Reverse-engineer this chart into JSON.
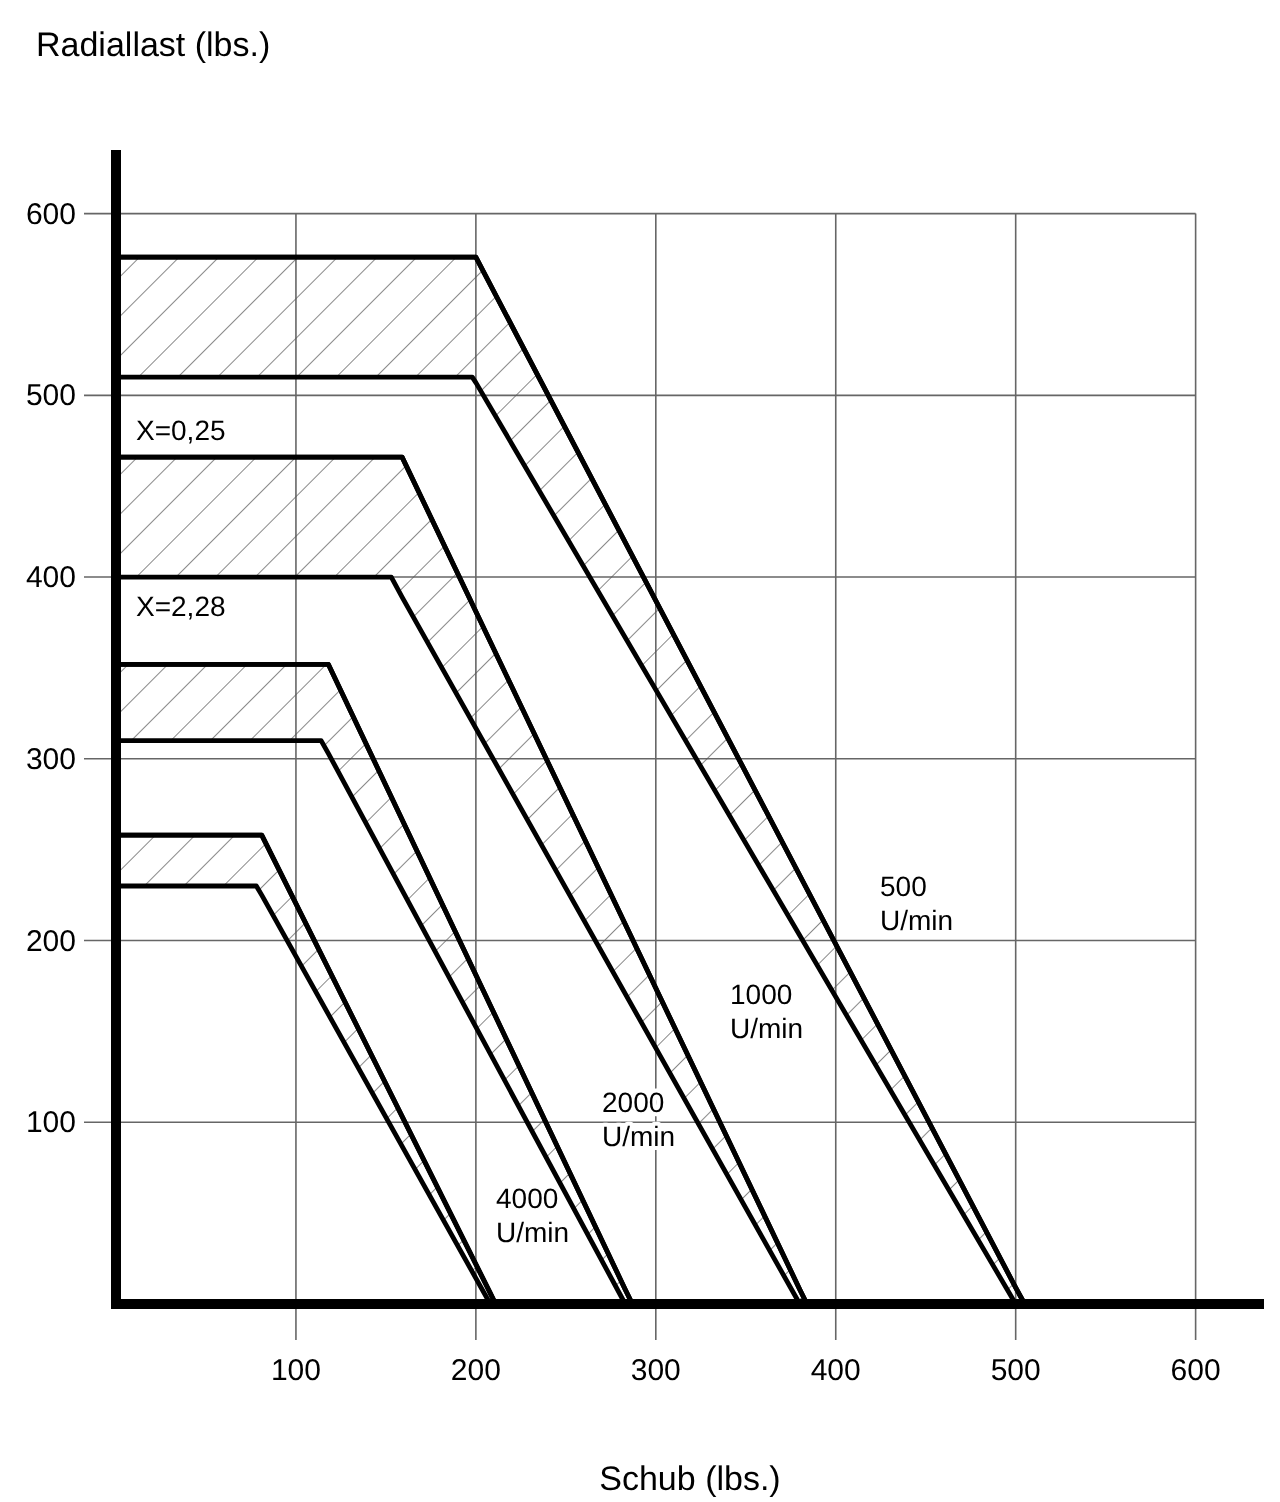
{
  "chart_data": {
    "type": "line",
    "xlabel": "Schub (lbs.)",
    "ylabel": "Radiallast (lbs.)",
    "xlim": [
      0,
      638
    ],
    "ylim": [
      0,
      635
    ],
    "xticks": [
      100,
      200,
      300,
      400,
      500,
      600
    ],
    "yticks": [
      100,
      200,
      300,
      400,
      500,
      600
    ],
    "grid": true,
    "marker": "none",
    "line_style": "solid",
    "series": [
      {
        "color": "#000000",
        "x": [
          0,
          198,
          200,
          500,
          505
        ],
        "values": [
          576,
          576,
          576,
          9,
          0
        ],
        "lower": [
          510,
          510,
          507,
          0,
          0
        ],
        "upper": [
          576,
          576,
          576,
          9,
          0
        ]
      },
      {
        "color": "#000000",
        "x": [
          0,
          153,
          159,
          380,
          384
        ],
        "values": [
          466,
          466,
          466,
          8,
          0
        ],
        "lower": [
          400,
          400,
          389,
          0,
          0
        ],
        "upper": [
          466,
          466,
          466,
          8,
          0
        ]
      },
      {
        "color": "#000000",
        "x": [
          0,
          114,
          118,
          283,
          287
        ],
        "values": [
          352,
          352,
          352,
          8,
          0
        ],
        "lower": [
          310,
          310,
          303,
          0,
          0
        ],
        "upper": [
          352,
          352,
          352,
          8,
          0
        ]
      },
      {
        "color": "#000000",
        "x": [
          0,
          78,
          81,
          208,
          211
        ],
        "values": [
          258,
          258,
          258,
          6,
          0
        ],
        "lower": [
          230,
          230,
          225,
          0,
          0
        ],
        "upper": [
          258,
          258,
          258,
          6,
          0
        ]
      }
    ],
    "annotations": [
      "X=0,25",
      "X=2,28",
      "500\nU/min",
      "1000\nU/min",
      "2000\nU/min",
      "4000\nU/min"
    ]
  }
}
